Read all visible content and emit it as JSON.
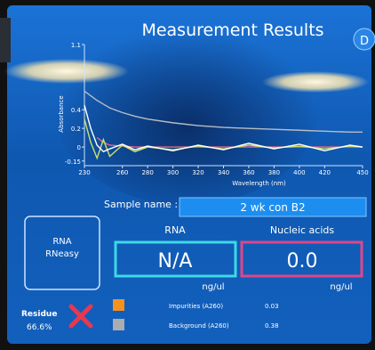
{
  "header": {
    "title": "Measurement Results",
    "button": "D"
  },
  "chart": {
    "type": "line",
    "y_label": "Absorbance",
    "x_label": "Wavelength (nm)",
    "x": [
      230,
      235,
      240,
      245,
      250,
      260,
      270,
      280,
      300,
      320,
      340,
      360,
      380,
      400,
      420,
      440,
      450
    ],
    "series": [
      {
        "color": "#b9bcc4",
        "values": [
          0.6,
          0.55,
          0.5,
          0.46,
          0.42,
          0.37,
          0.33,
          0.3,
          0.26,
          0.23,
          0.21,
          0.2,
          0.19,
          0.18,
          0.17,
          0.16,
          0.16
        ]
      },
      {
        "color": "#e06a8a",
        "values": [
          null,
          null,
          0.1,
          0.05,
          0.02,
          0.01,
          0,
          0,
          0,
          0,
          0,
          0,
          0,
          0,
          0,
          0,
          0
        ]
      },
      {
        "color": "#c8e06a",
        "values": [
          0.3,
          0.05,
          -0.12,
          0.08,
          -0.1,
          0.02,
          -0.05,
          0,
          -0.03,
          0.01,
          -0.02,
          0.02,
          -0.01,
          0.01,
          -0.02,
          0.01,
          0
        ]
      },
      {
        "color": "#ffffff",
        "values": [
          0.45,
          0.2,
          0.02,
          -0.05,
          -0.02,
          0.03,
          -0.03,
          0.01,
          -0.04,
          0.02,
          -0.03,
          0.04,
          -0.02,
          0.03,
          -0.04,
          0.02,
          0
        ]
      }
    ],
    "xlim": [
      230,
      450
    ],
    "ylim": [
      -0.2,
      1.1
    ],
    "xticks": [
      230,
      260,
      280,
      300,
      320,
      340,
      360,
      380,
      400,
      420,
      450
    ],
    "yticks": [
      1.1,
      0.4,
      0.2,
      0,
      -0.15
    ]
  },
  "sample": {
    "label": "Sample name :",
    "value": "2 wk con B2"
  },
  "method": {
    "line1": "RNA",
    "line2": "RNeasy"
  },
  "results": [
    {
      "label": "RNA",
      "value": "N/A",
      "unit": "ng/ul"
    },
    {
      "label": "Nucleic acids",
      "value": "0.0",
      "unit": "ng/ul"
    }
  ],
  "residue": {
    "label": "Residue",
    "value": "66.6%"
  },
  "legend": [
    {
      "label": "Impurities (A260)",
      "value": "0.03",
      "color": "#f5921e"
    },
    {
      "label": "Background (A260)",
      "value": "0.38",
      "color": "#a9acb0"
    }
  ]
}
